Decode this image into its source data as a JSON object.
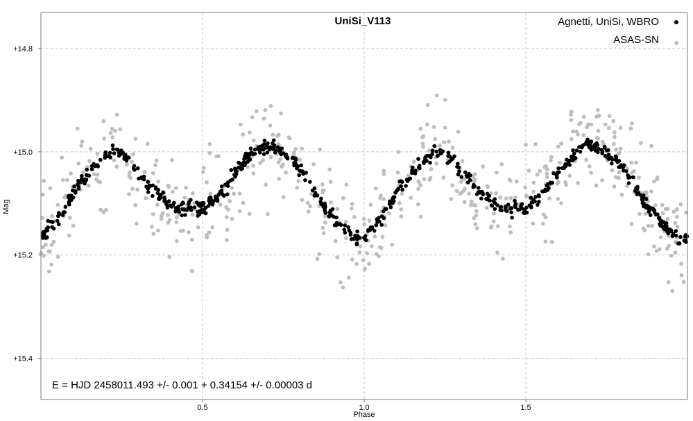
{
  "chart_data": {
    "type": "scatter",
    "title": "UniSi_V113",
    "xlabel": "Phase",
    "ylabel": "Mag",
    "xlim": [
      0.0,
      2.0
    ],
    "ylim": [
      15.48,
      14.73
    ],
    "y_inverted": true,
    "grid": true,
    "grid_style": "dashed",
    "legend_position": "top-right",
    "x_ticks": [
      0.5,
      1.0,
      1.5
    ],
    "x_tick_labels": [
      "0.5",
      "1.0",
      "1.5"
    ],
    "y_ticks": [
      14.8,
      15.0,
      15.2,
      15.4
    ],
    "y_tick_labels": [
      "+14.8",
      "+15.0",
      "+15.2",
      "+15.4"
    ],
    "annotation": "E = HJD 2458011.493 +/- 0.001 + 0.34154 +/- 0.00003 d",
    "ephemeris": {
      "epoch_hjd": 2458011.493,
      "epoch_err": 0.001,
      "period_d": 0.34154,
      "period_err": 3e-05
    },
    "series": [
      {
        "name": "Agnetti, UniSi, WBRO",
        "color": "#000000",
        "marker": "filled-circle",
        "phase_points": [
          [
            0.0,
            15.17
          ],
          [
            0.02,
            15.15
          ],
          [
            0.04,
            15.14
          ],
          [
            0.06,
            15.12
          ],
          [
            0.08,
            15.1
          ],
          [
            0.1,
            15.08
          ],
          [
            0.12,
            15.06
          ],
          [
            0.14,
            15.05
          ],
          [
            0.16,
            15.03
          ],
          [
            0.18,
            15.02
          ],
          [
            0.2,
            15.01
          ],
          [
            0.22,
            15.0
          ],
          [
            0.24,
            15.0
          ],
          [
            0.26,
            15.01
          ],
          [
            0.28,
            15.02
          ],
          [
            0.3,
            15.04
          ],
          [
            0.32,
            15.05
          ],
          [
            0.34,
            15.07
          ],
          [
            0.36,
            15.08
          ],
          [
            0.38,
            15.09
          ],
          [
            0.4,
            15.1
          ],
          [
            0.42,
            15.11
          ],
          [
            0.44,
            15.11
          ],
          [
            0.46,
            15.11
          ],
          [
            0.48,
            15.11
          ],
          [
            0.5,
            15.11
          ],
          [
            0.52,
            15.1
          ],
          [
            0.54,
            15.09
          ],
          [
            0.56,
            15.08
          ],
          [
            0.58,
            15.06
          ],
          [
            0.6,
            15.04
          ],
          [
            0.62,
            15.03
          ],
          [
            0.64,
            15.01
          ],
          [
            0.66,
            15.0
          ],
          [
            0.68,
            14.99
          ],
          [
            0.7,
            14.99
          ],
          [
            0.72,
            14.99
          ],
          [
            0.74,
            15.0
          ],
          [
            0.76,
            15.01
          ],
          [
            0.78,
            15.02
          ],
          [
            0.8,
            15.03
          ],
          [
            0.82,
            15.05
          ],
          [
            0.84,
            15.07
          ],
          [
            0.86,
            15.09
          ],
          [
            0.88,
            15.11
          ],
          [
            0.9,
            15.12
          ],
          [
            0.92,
            15.14
          ],
          [
            0.94,
            15.15
          ],
          [
            0.96,
            15.16
          ],
          [
            0.98,
            15.17
          ],
          [
            1.0,
            15.17
          ]
        ]
      },
      {
        "name": "ASAS-SN",
        "color": "#bebebe",
        "marker": "filled-circle"
      }
    ]
  }
}
